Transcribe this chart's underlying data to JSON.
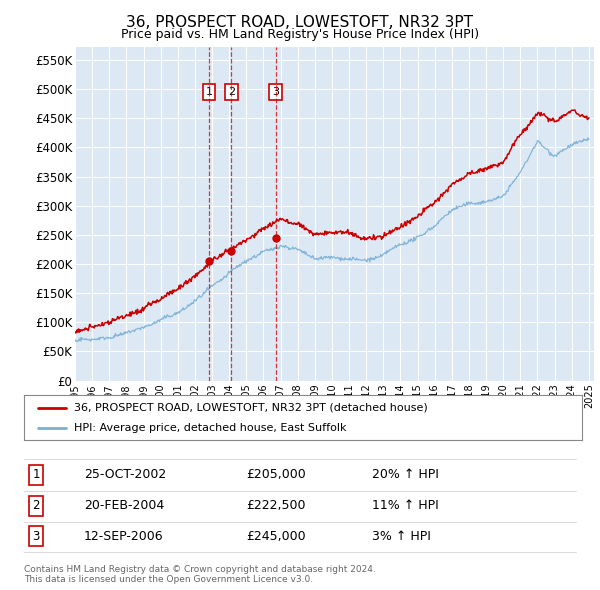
{
  "title": "36, PROSPECT ROAD, LOWESTOFT, NR32 3PT",
  "subtitle": "Price paid vs. HM Land Registry's House Price Index (HPI)",
  "plot_bg_color": "#dce9f5",
  "yticks": [
    0,
    50000,
    100000,
    150000,
    200000,
    250000,
    300000,
    350000,
    400000,
    450000,
    500000,
    550000
  ],
  "ytick_labels": [
    "£0",
    "£50K",
    "£100K",
    "£150K",
    "£200K",
    "£250K",
    "£300K",
    "£350K",
    "£400K",
    "£450K",
    "£500K",
    "£550K"
  ],
  "ylim": [
    0,
    572000
  ],
  "xstart": 1995,
  "xend": 2025,
  "sale_dates": [
    2002.82,
    2004.13,
    2006.71
  ],
  "sale_prices": [
    205000,
    222500,
    245000
  ],
  "sale_labels": [
    "1",
    "2",
    "3"
  ],
  "legend_line1": "36, PROSPECT ROAD, LOWESTOFT, NR32 3PT (detached house)",
  "legend_line2": "HPI: Average price, detached house, East Suffolk",
  "table_data": [
    [
      "1",
      "25-OCT-2002",
      "£205,000",
      "20% ↑ HPI"
    ],
    [
      "2",
      "20-FEB-2004",
      "£222,500",
      "11% ↑ HPI"
    ],
    [
      "3",
      "12-SEP-2006",
      "£245,000",
      "3% ↑ HPI"
    ]
  ],
  "footnote1": "Contains HM Land Registry data © Crown copyright and database right 2024.",
  "footnote2": "This data is licensed under the Open Government Licence v3.0.",
  "red_color": "#cc0000",
  "blue_color": "#7bafd4"
}
